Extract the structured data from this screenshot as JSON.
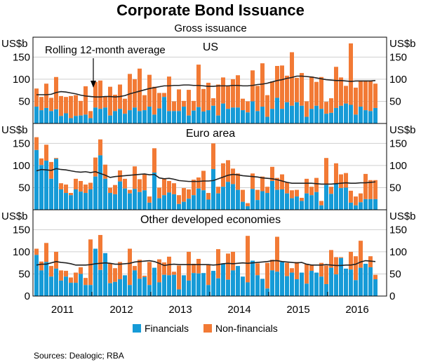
{
  "chart_data": {
    "type": "bar",
    "title": "Corporate Bond Issuance",
    "subtitle": "Gross issuance",
    "unit_label": "US$b",
    "x_start": "2011-01",
    "x_tick_labels": [
      "2011",
      "2012",
      "2013",
      "2014",
      "2015",
      "2016"
    ],
    "y_ticks": [
      0,
      50,
      100,
      150
    ],
    "ylim": [
      0,
      195
    ],
    "grid": true,
    "stacked": true,
    "legend": {
      "position": "bottom",
      "entries": [
        {
          "name": "Financials",
          "color": "#169bd7"
        },
        {
          "name": "Non-financials",
          "color": "#f27a35"
        }
      ]
    },
    "average_label": "Rolling 12-month average",
    "average_color": "#222222",
    "panels": [
      {
        "name": "US",
        "show_zero_tick": false,
        "annotation": "Rolling 12-month average",
        "financials": [
          38,
          30,
          35,
          28,
          32,
          17,
          23,
          12,
          17,
          18,
          20,
          12,
          36,
          33,
          36,
          18,
          28,
          33,
          22,
          30,
          36,
          28,
          30,
          38,
          20,
          34,
          60,
          28,
          28,
          28,
          38,
          18,
          29,
          37,
          27,
          30,
          40,
          18,
          45,
          33,
          36,
          36,
          30,
          25,
          50,
          28,
          38,
          15,
          33,
          58,
          33,
          48,
          40,
          48,
          40,
          15,
          33,
          40,
          33,
          22,
          24,
          35,
          40,
          45,
          42,
          20,
          38,
          30,
          28,
          35
        ],
        "totals": [
          79,
          60,
          90,
          58,
          105,
          62,
          60,
          62,
          64,
          51,
          84,
          28,
          94,
          97,
          61,
          83,
          65,
          88,
          56,
          112,
          100,
          124,
          64,
          110,
          83,
          69,
          69,
          106,
          50,
          77,
          51,
          76,
          51,
          133,
          78,
          92,
          57,
          88,
          104,
          85,
          100,
          109,
          56,
          50,
          120,
          85,
          136,
          64,
          95,
          130,
          131,
          108,
          161,
          103,
          114,
          50,
          106,
          94,
          105,
          49,
          57,
          128,
          104,
          85,
          181,
          81,
          97,
          97,
          97,
          90
        ],
        "average": [
          65,
          65,
          65,
          66,
          70,
          72,
          71,
          69,
          67,
          64,
          62,
          61,
          60,
          60,
          61,
          61,
          60,
          61,
          63,
          67,
          70,
          73,
          76,
          79,
          81,
          83,
          85,
          85,
          86,
          86,
          87,
          87,
          86,
          86,
          85,
          84,
          84,
          85,
          85,
          85,
          86,
          86,
          85,
          85,
          86,
          88,
          89,
          91,
          94,
          97,
          99,
          102,
          104,
          107,
          107,
          106,
          105,
          103,
          101,
          99,
          98,
          97,
          97,
          96,
          95,
          96,
          96,
          96,
          96,
          97
        ]
      },
      {
        "name": "Euro area",
        "show_zero_tick": false,
        "financials": [
          135,
          101,
          111,
          70,
          115,
          46,
          38,
          33,
          46,
          41,
          38,
          46,
          75,
          123,
          70,
          38,
          35,
          64,
          48,
          37,
          47,
          40,
          44,
          16,
          84,
          26,
          33,
          39,
          35,
          13,
          18,
          25,
          33,
          48,
          44,
          23,
          92,
          37,
          52,
          63,
          58,
          45,
          18,
          8,
          47,
          22,
          42,
          38,
          65,
          45,
          46,
          37,
          26,
          30,
          20,
          37,
          33,
          40,
          10,
          56,
          36,
          60,
          49,
          50,
          16,
          10,
          17,
          24,
          24,
          24
        ],
        "totals": [
          164,
          116,
          147,
          108,
          117,
          60,
          57,
          38,
          70,
          65,
          57,
          61,
          118,
          159,
          102,
          50,
          56,
          89,
          70,
          45,
          98,
          69,
          80,
          30,
          139,
          50,
          70,
          65,
          60,
          33,
          49,
          46,
          68,
          73,
          88,
          38,
          150,
          52,
          105,
          112,
          93,
          82,
          45,
          15,
          82,
          45,
          75,
          52,
          97,
          72,
          80,
          62,
          44,
          45,
          27,
          70,
          52,
          72,
          20,
          117,
          52,
          105,
          80,
          83,
          43,
          30,
          37,
          81,
          67,
          67
        ],
        "average": [
          88,
          91,
          90,
          89,
          93,
          91,
          90,
          88,
          86,
          85,
          86,
          84,
          86,
          82,
          78,
          73,
          75,
          76,
          77,
          78,
          79,
          80,
          81,
          79,
          80,
          72,
          70,
          71,
          69,
          66,
          65,
          64,
          64,
          64,
          65,
          65,
          66,
          70,
          74,
          78,
          80,
          79,
          77,
          76,
          75,
          74,
          72,
          71,
          70,
          68,
          65,
          62,
          60,
          60,
          60,
          60,
          60,
          59,
          58,
          58,
          58,
          59,
          60,
          61,
          60,
          60,
          61,
          61,
          62,
          63
        ]
      },
      {
        "name": "Other developed economies",
        "show_zero_tick": true,
        "financials": [
          93,
          58,
          77,
          44,
          62,
          35,
          44,
          30,
          30,
          50,
          25,
          25,
          107,
          59,
          97,
          29,
          32,
          38,
          47,
          25,
          58,
          39,
          43,
          25,
          64,
          31,
          48,
          47,
          48,
          15,
          47,
          35,
          52,
          51,
          52,
          25,
          57,
          40,
          74,
          37,
          58,
          68,
          44,
          31,
          80,
          47,
          39,
          17,
          58,
          55,
          77,
          45,
          53,
          38,
          53,
          28,
          57,
          53,
          44,
          27,
          64,
          49,
          86,
          62,
          60,
          36,
          64,
          73,
          65,
          38
        ],
        "totals": [
          107,
          78,
          120,
          68,
          100,
          58,
          57,
          42,
          53,
          65,
          41,
          128,
          96,
          138,
          43,
          74,
          63,
          77,
          44,
          107,
          68,
          82,
          46,
          77,
          63,
          83,
          76,
          89,
          55,
          69,
          47,
          100,
          73,
          84,
          41,
          71,
          57,
          106,
          59,
          96,
          100,
          60,
          43,
          136,
          67,
          74,
          31,
          75,
          82,
          134,
          68,
          75,
          63,
          77,
          33,
          73,
          71,
          38,
          75,
          69,
          104,
          88,
          88,
          60,
          100,
          90,
          125,
          48,
          90,
          48
        ],
        "average": [
          70,
          72,
          72,
          75,
          78,
          76,
          75,
          73,
          70,
          70,
          70,
          71,
          73,
          74,
          75,
          74,
          72,
          72,
          73,
          74,
          77,
          78,
          79,
          80,
          78,
          74,
          69,
          71,
          72,
          71,
          71,
          71,
          71,
          71,
          71,
          71,
          70,
          71,
          73,
          74,
          73,
          74,
          75,
          74,
          75,
          76,
          77,
          78,
          80,
          80,
          78,
          77,
          76,
          75,
          76,
          72,
          70,
          70,
          70,
          71,
          70,
          69,
          69,
          70,
          70,
          72,
          77,
          80,
          79,
          78
        ]
      }
    ]
  },
  "source_note": "Sources:   Dealogic; RBA"
}
